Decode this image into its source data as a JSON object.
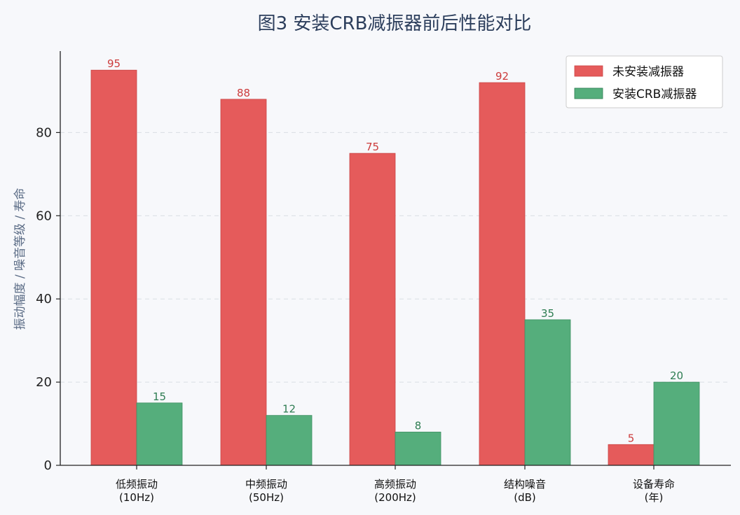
{
  "chart_data": {
    "type": "bar",
    "title": "图3  安装CRB减振器前后性能对比",
    "ylabel": "振动幅度 / 噪音等级 / 寿命",
    "xlabel": "",
    "categories": [
      [
        "低频振动",
        "(10Hz)"
      ],
      [
        "中频振动",
        "(50Hz)"
      ],
      [
        "高频振动",
        "(200Hz)"
      ],
      [
        "结构噪音",
        "(dB)"
      ],
      [
        "设备寿命",
        "(年)"
      ]
    ],
    "series": [
      {
        "name": "未安装减振器",
        "values": [
          95,
          88,
          75,
          92,
          5
        ],
        "color": "#e55b5b",
        "label_color": "#cc3b3b"
      },
      {
        "name": "安装CRB减振器",
        "values": [
          15,
          12,
          8,
          35,
          20
        ],
        "color": "#55ae7c",
        "label_color": "#2e7d52"
      }
    ],
    "ylim": [
      0,
      99.75
    ],
    "yticks": [
      0,
      20,
      40,
      60,
      80
    ],
    "grid": "y-dashed",
    "legend": "top-right"
  }
}
